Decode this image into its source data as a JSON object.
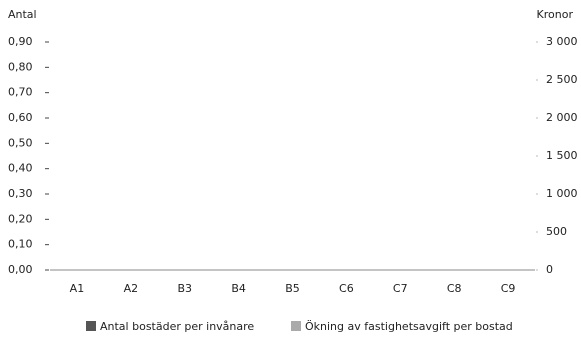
{
  "chart_data": {
    "type": "bar",
    "y_label": "Antal",
    "y2_label": "Kronor",
    "categories": [
      "A1",
      "A2",
      "B3",
      "B4",
      "B5",
      "C6",
      "C7",
      "C8",
      "C9"
    ],
    "series": [
      {
        "name": "Antal bostäder per invånare",
        "color": "#555555",
        "values": [
          0,
          0,
          0,
          0,
          0,
          0,
          0,
          0,
          0
        ]
      },
      {
        "name": "Ökning av fastighetsavgift per bostad",
        "color": "#aaaaaa",
        "axis": "y2",
        "values": [
          0,
          0,
          0,
          0,
          0,
          0,
          0,
          0,
          0
        ]
      }
    ],
    "ylim": [
      0,
      0.9
    ],
    "yticks": [
      {
        "value": 0,
        "label": "0,00"
      },
      {
        "value": 0.1,
        "label": "0,10"
      },
      {
        "value": 0.2,
        "label": "0,20"
      },
      {
        "value": 0.3,
        "label": "0,30"
      },
      {
        "value": 0.4,
        "label": "0,40"
      },
      {
        "value": 0.5,
        "label": "0,50"
      },
      {
        "value": 0.6,
        "label": "0,60"
      },
      {
        "value": 0.7,
        "label": "0,70"
      },
      {
        "value": 0.8,
        "label": "0,80"
      },
      {
        "value": 0.9,
        "label": "0,90"
      }
    ],
    "y2lim": [
      0,
      3000
    ],
    "y2ticks": [
      0,
      500,
      {
        "value": 1000,
        "label": "1 000"
      },
      {
        "value": 1500,
        "label": "1 500"
      },
      {
        "value": 2000,
        "label": "2 000"
      },
      {
        "value": 2500,
        "label": "2 500"
      },
      {
        "value": 3000,
        "label": "3 000"
      }
    ],
    "legend": "bottom"
  }
}
